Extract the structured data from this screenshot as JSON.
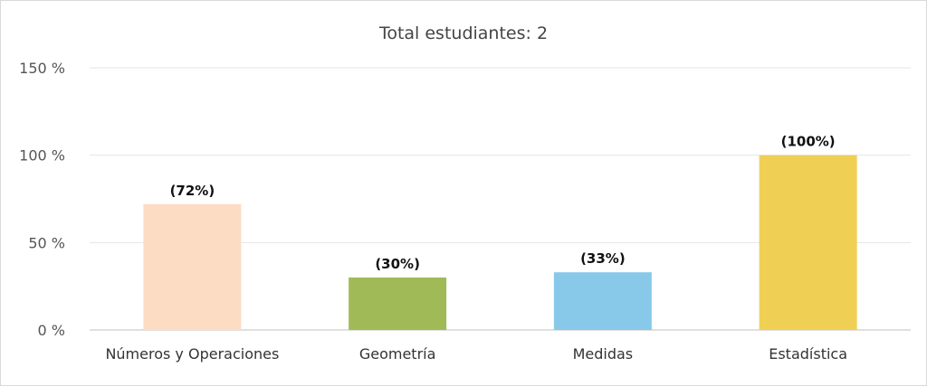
{
  "chart_data": {
    "type": "bar",
    "title": "Total estudiantes: 2",
    "xlabel": "",
    "ylabel": "",
    "categories": [
      "Números y Operaciones",
      "Geometría",
      "Medidas",
      "Estadística"
    ],
    "values": [
      72,
      30,
      33,
      100
    ],
    "data_labels": [
      "(72%)",
      "(30%)",
      "(33%)",
      "(100%)"
    ],
    "colors": [
      "#fddcc4",
      "#a0ba57",
      "#88c9ea",
      "#f0cf55"
    ],
    "ylim": [
      0,
      150
    ],
    "yticks": [
      0,
      50,
      100,
      150
    ],
    "ytick_labels": [
      "0 %",
      "50 %",
      "100 %",
      "150 %"
    ],
    "grid": true,
    "legend": "none"
  }
}
